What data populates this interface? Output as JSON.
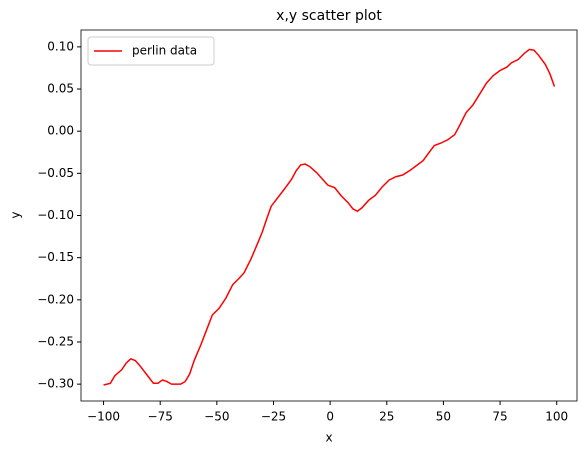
{
  "chart_data": {
    "type": "line",
    "title": "x,y scatter plot",
    "x_label": "x",
    "y_label": "y",
    "legend": "upper left",
    "grid": false,
    "x": [
      -100,
      -97,
      -95,
      -92,
      -90,
      -88,
      -86,
      -84,
      -80,
      -78,
      -76,
      -74,
      -72,
      -70,
      -66,
      -64,
      -62,
      -60,
      -57,
      -54,
      -52,
      -49,
      -46,
      -43,
      -40,
      -38,
      -35,
      -32,
      -30,
      -28,
      -26,
      -24,
      -20,
      -17,
      -15,
      -13,
      -11,
      -9,
      -6,
      -3,
      -1,
      2,
      5,
      8,
      10,
      12,
      14,
      17,
      20,
      23,
      26,
      29,
      32,
      35,
      38,
      41,
      44,
      46,
      49,
      52,
      55,
      57,
      60,
      63,
      66,
      69,
      72,
      75,
      78,
      80,
      83,
      86,
      88,
      90,
      92,
      95,
      97,
      99
    ],
    "series": [
      {
        "name": "perlin data",
        "color": "#ff0000",
        "values": [
          -0.301,
          -0.299,
          -0.29,
          -0.283,
          -0.275,
          -0.27,
          -0.272,
          -0.278,
          -0.292,
          -0.299,
          -0.299,
          -0.295,
          -0.297,
          -0.3,
          -0.3,
          -0.297,
          -0.288,
          -0.272,
          -0.253,
          -0.232,
          -0.218,
          -0.21,
          -0.198,
          -0.182,
          -0.174,
          -0.168,
          -0.152,
          -0.133,
          -0.12,
          -0.104,
          -0.089,
          -0.082,
          -0.068,
          -0.057,
          -0.047,
          -0.04,
          -0.039,
          -0.042,
          -0.049,
          -0.058,
          -0.064,
          -0.067,
          -0.077,
          -0.085,
          -0.092,
          -0.095,
          -0.091,
          -0.082,
          -0.076,
          -0.066,
          -0.058,
          -0.054,
          -0.052,
          -0.047,
          -0.041,
          -0.035,
          -0.024,
          -0.017,
          -0.014,
          -0.01,
          -0.004,
          0.006,
          0.022,
          0.031,
          0.044,
          0.057,
          0.066,
          0.072,
          0.076,
          0.081,
          0.085,
          0.093,
          0.097,
          0.096,
          0.09,
          0.079,
          0.068,
          0.053
        ]
      }
    ],
    "xlim": [
      -109.95,
      108.95
    ],
    "xticks": [
      {
        "value": -100,
        "label": "−100"
      },
      {
        "value": -75,
        "label": "−75"
      },
      {
        "value": -50,
        "label": "−50"
      },
      {
        "value": -25,
        "label": "−25"
      },
      0,
      25,
      50,
      75,
      100
    ],
    "ylim": [
      -0.32,
      0.12
    ],
    "yticks": [
      {
        "value": -0.3,
        "label": "−0.30"
      },
      {
        "value": -0.25,
        "label": "−0.25"
      },
      {
        "value": -0.2,
        "label": "−0.20"
      },
      {
        "value": -0.15,
        "label": "−0.15"
      },
      {
        "value": -0.1,
        "label": "−0.10"
      },
      {
        "value": -0.05,
        "label": "−0.05"
      },
      {
        "value": 0,
        "label": "0.00"
      },
      {
        "value": 0.05,
        "label": "0.05"
      },
      {
        "value": 0.1,
        "label": "0.10"
      }
    ]
  }
}
